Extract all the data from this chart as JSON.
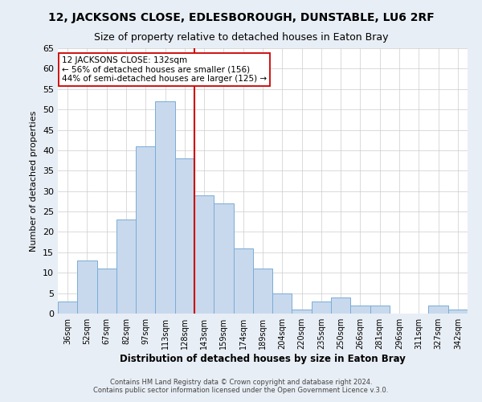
{
  "title": "12, JACKSONS CLOSE, EDLESBOROUGH, DUNSTABLE, LU6 2RF",
  "subtitle": "Size of property relative to detached houses in Eaton Bray",
  "xlabel": "Distribution of detached houses by size in Eaton Bray",
  "ylabel": "Number of detached properties",
  "footer_line1": "Contains HM Land Registry data © Crown copyright and database right 2024.",
  "footer_line2": "Contains public sector information licensed under the Open Government Licence v.3.0.",
  "categories": [
    "36sqm",
    "52sqm",
    "67sqm",
    "82sqm",
    "97sqm",
    "113sqm",
    "128sqm",
    "143sqm",
    "159sqm",
    "174sqm",
    "189sqm",
    "204sqm",
    "220sqm",
    "235sqm",
    "250sqm",
    "266sqm",
    "281sqm",
    "296sqm",
    "311sqm",
    "327sqm",
    "342sqm"
  ],
  "values": [
    3,
    13,
    11,
    23,
    41,
    52,
    38,
    29,
    27,
    16,
    11,
    5,
    1,
    3,
    4,
    2,
    2,
    0,
    0,
    2,
    1
  ],
  "bar_color": "#c8d9ed",
  "bar_edge_color": "#7aacd6",
  "property_line_index": 6,
  "property_line_color": "#cc0000",
  "ylim": [
    0,
    65
  ],
  "yticks": [
    0,
    5,
    10,
    15,
    20,
    25,
    30,
    35,
    40,
    45,
    50,
    55,
    60,
    65
  ],
  "annotation_line1": "12 JACKSONS CLOSE: 132sqm",
  "annotation_line2": "← 56% of detached houses are smaller (156)",
  "annotation_line3": "44% of semi-detached houses are larger (125) →",
  "annotation_box_edge_color": "#cc0000",
  "background_color": "#e8eef5",
  "plot_background_color": "#ffffff",
  "grid_color": "#cccccc",
  "title_fontsize": 10,
  "subtitle_fontsize": 9
}
